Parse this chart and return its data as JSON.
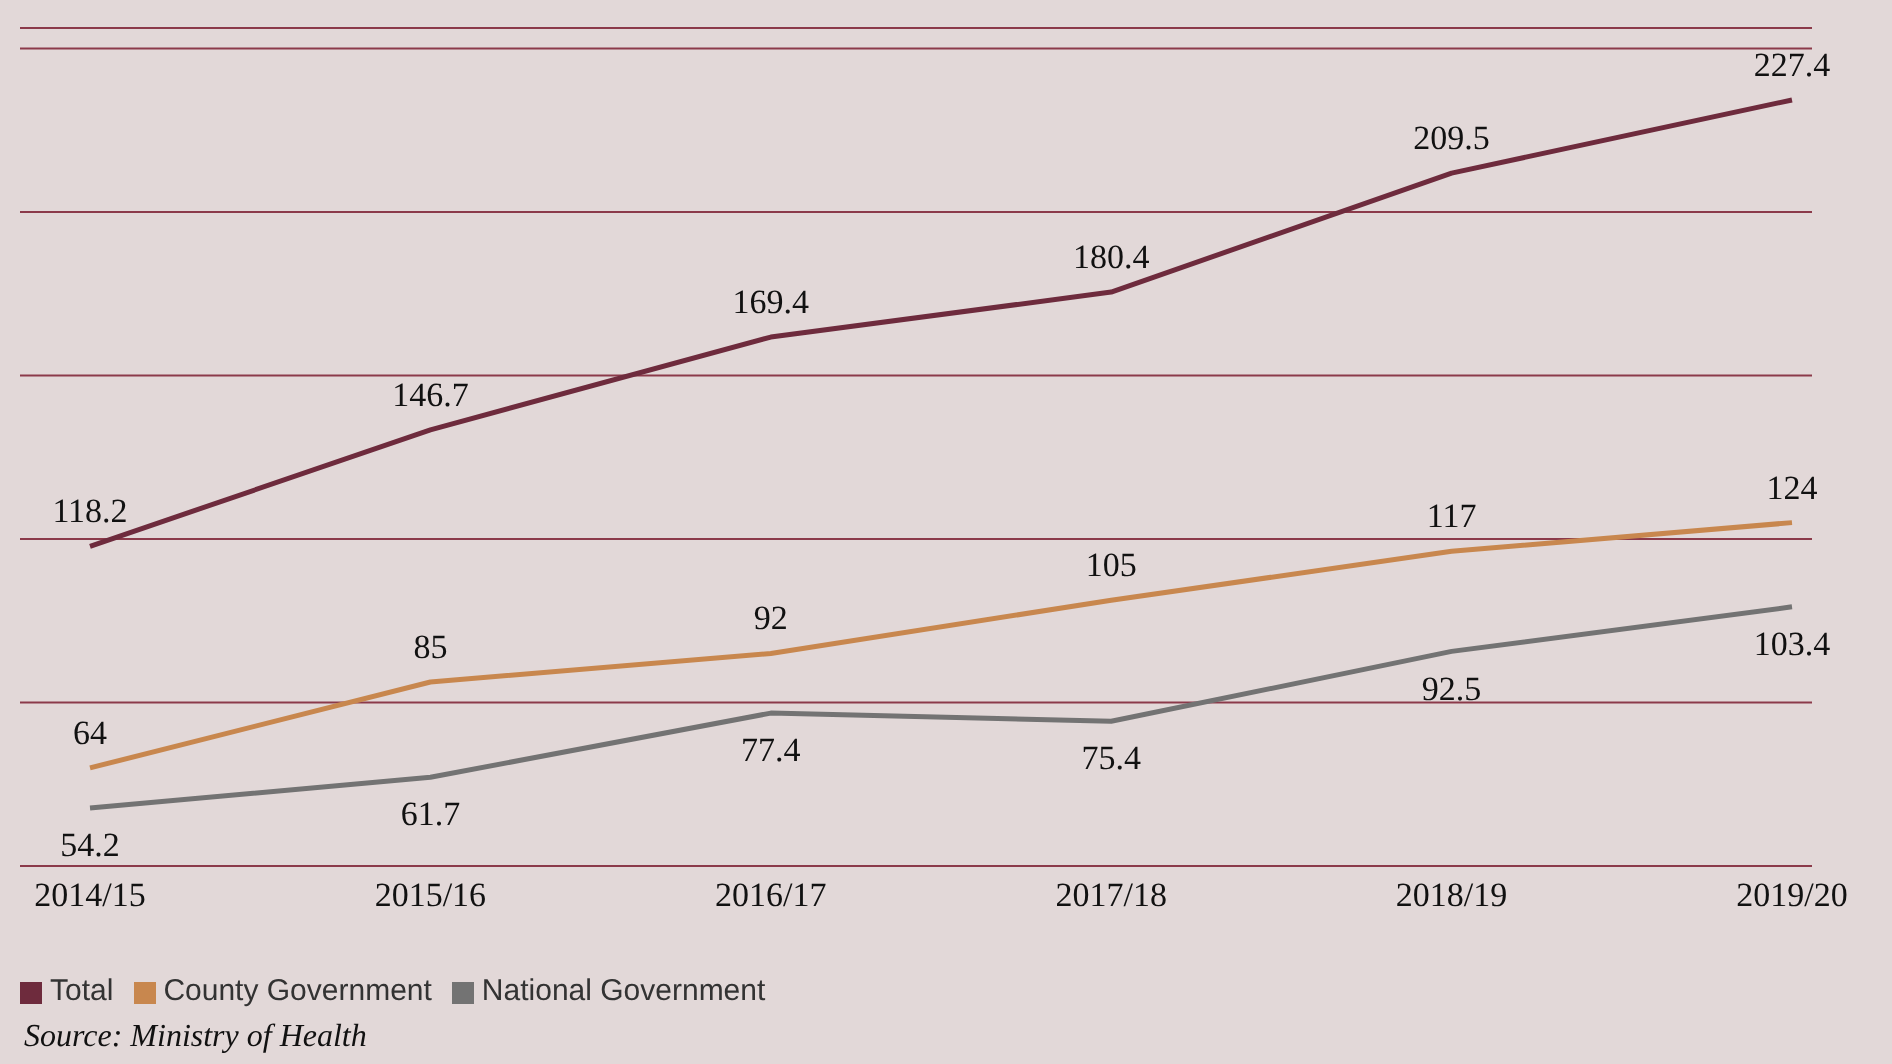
{
  "chart_data": {
    "type": "line",
    "categories": [
      "2014/15",
      "2015/16",
      "2016/17",
      "2017/18",
      "2018/19",
      "2019/20"
    ],
    "series": [
      {
        "name": "Total",
        "color": "#6e2b3d",
        "values": [
          118.2,
          146.7,
          169.4,
          180.4,
          209.5,
          227.4
        ]
      },
      {
        "name": "County Government",
        "color": "#c8874e",
        "values": [
          64,
          85,
          92,
          105,
          117,
          124
        ]
      },
      {
        "name": "National Government",
        "color": "#737373",
        "values": [
          54.2,
          61.7,
          77.4,
          75.4,
          92.5,
          103.4
        ]
      }
    ],
    "ylim": [
      40,
      245
    ],
    "yticks": [
      {
        "value": 40,
        "label": null
      },
      {
        "value": 80,
        "label": null
      },
      {
        "value": 120,
        "label": null
      },
      {
        "value": 160,
        "label": null
      },
      {
        "value": 200,
        "label": null
      },
      {
        "value": 240,
        "label": null
      }
    ],
    "tick_labels": "x",
    "grid": "y",
    "data_labels": true,
    "legend": "bottom left",
    "marker": "none",
    "line_style": "solid",
    "annotations": [
      "Source: Ministry of Health"
    ]
  }
}
